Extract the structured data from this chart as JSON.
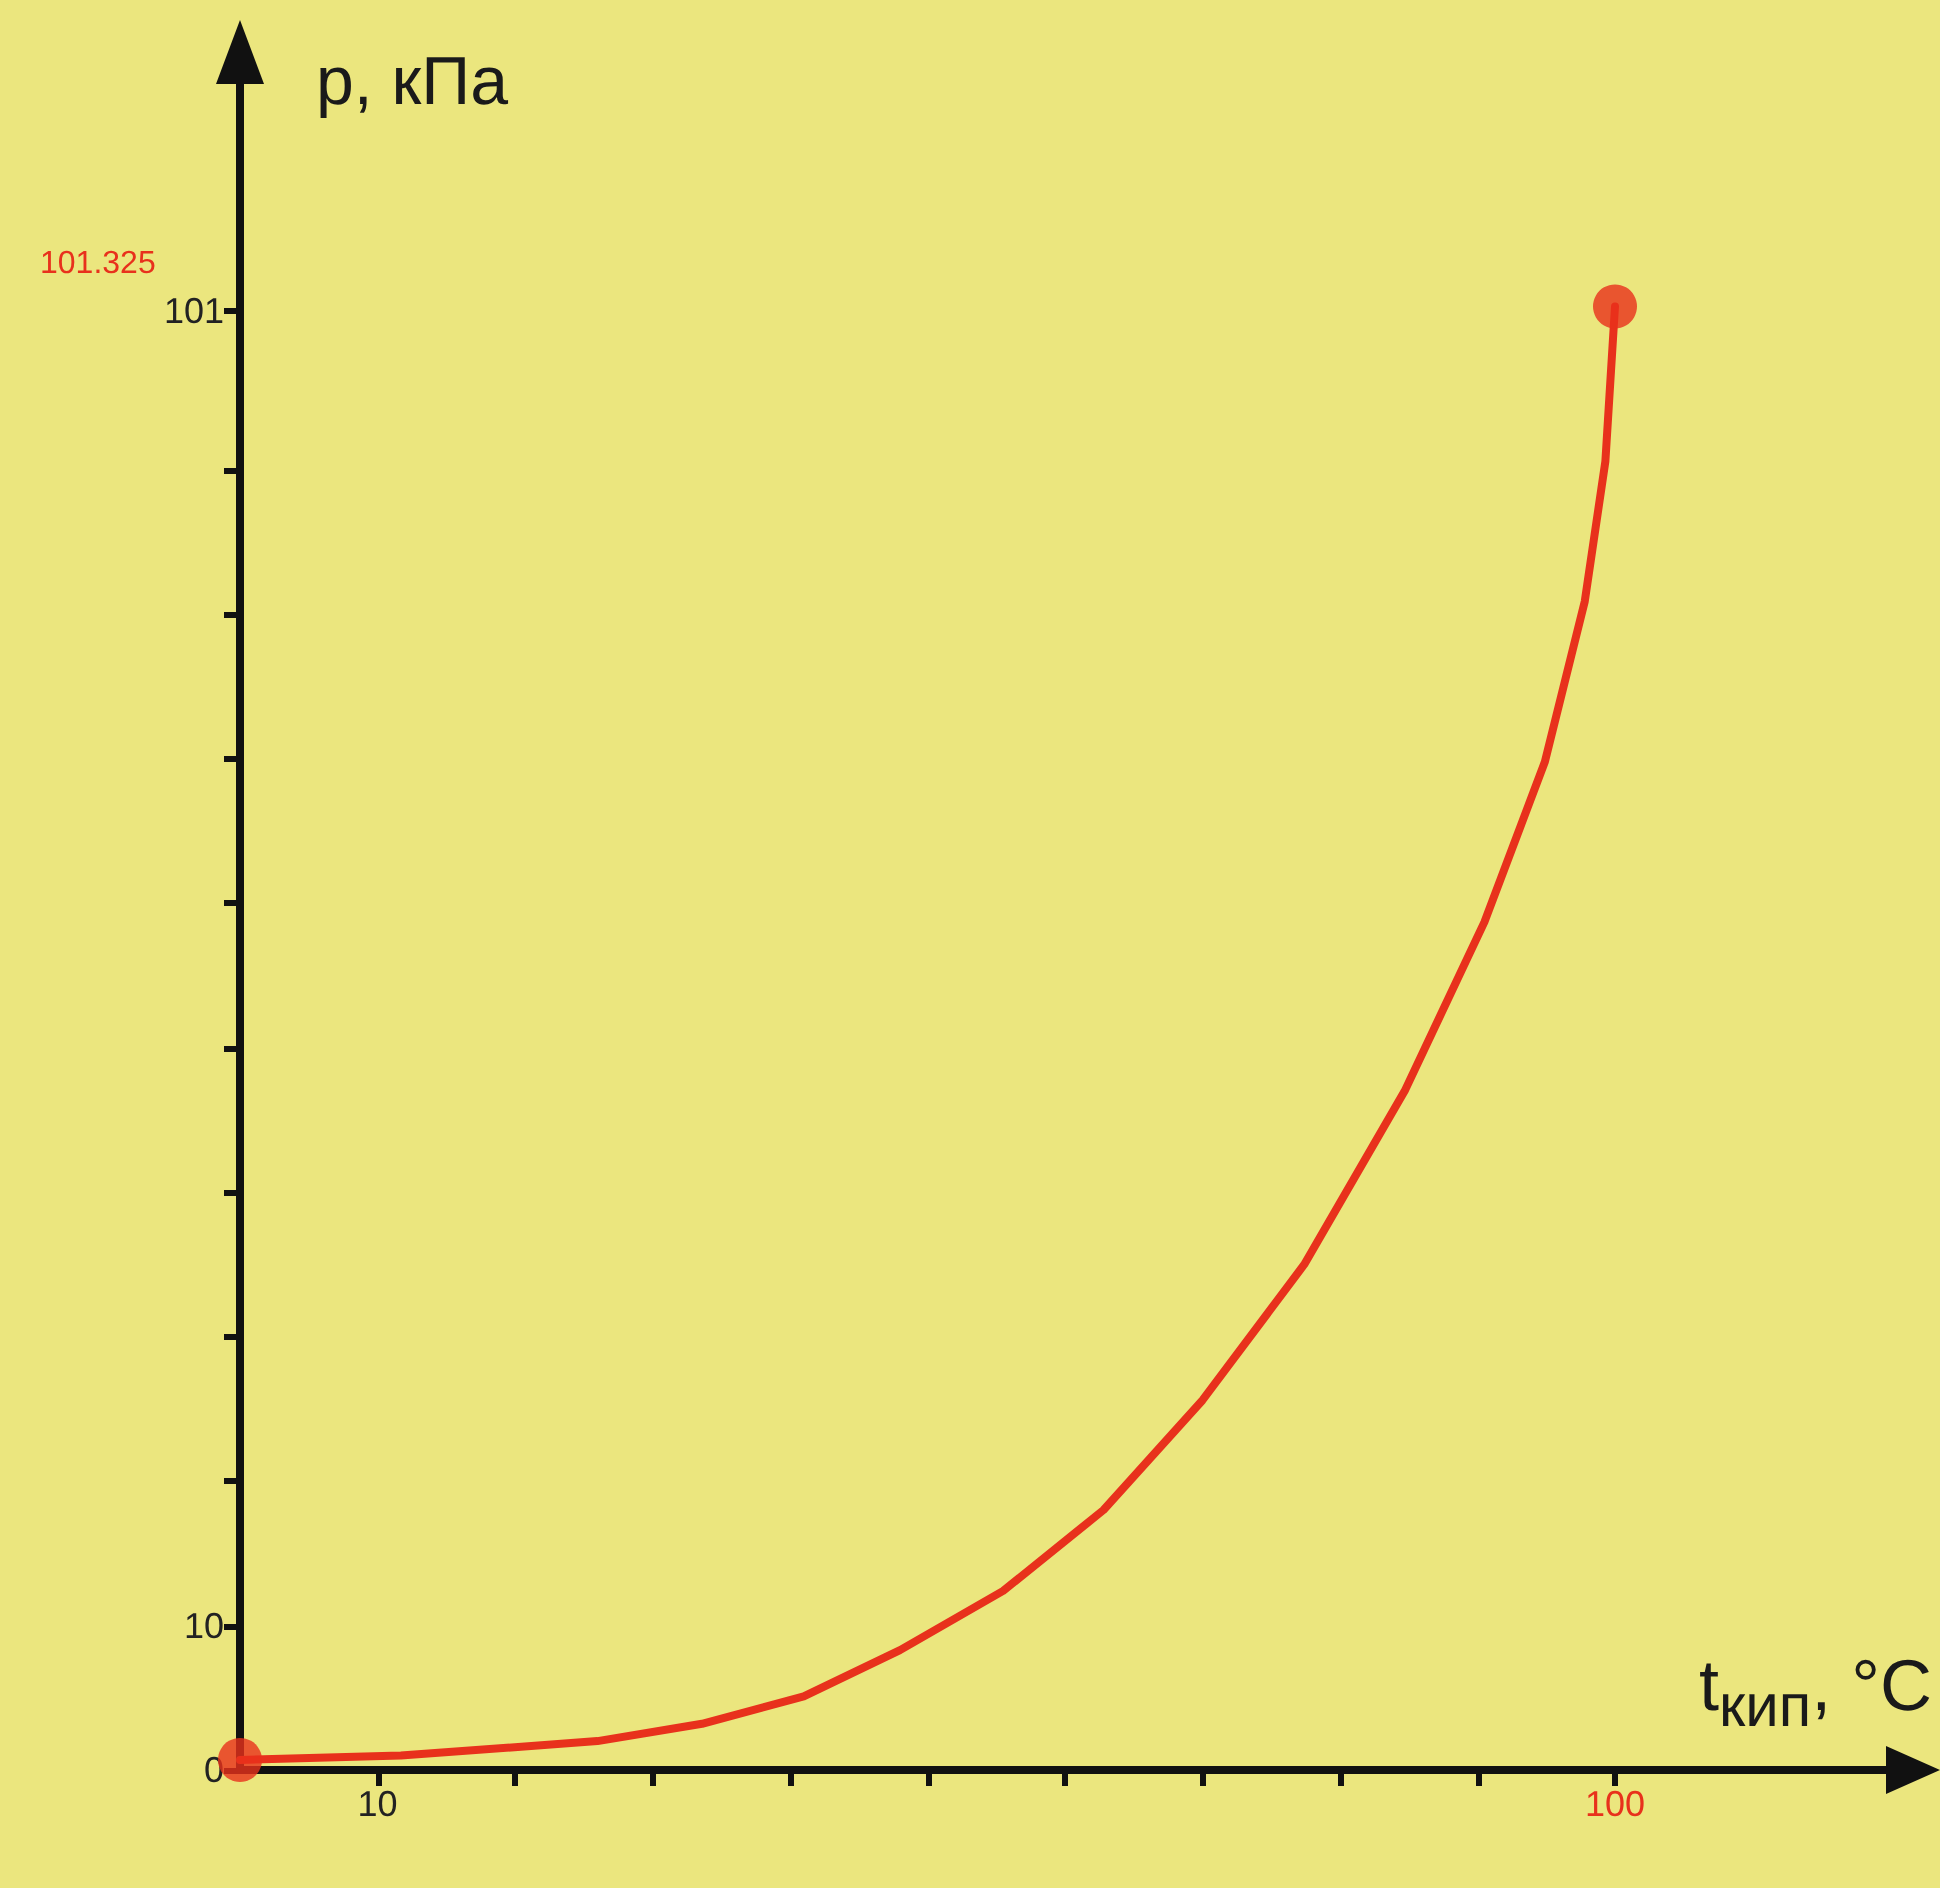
{
  "chart_data": {
    "type": "line",
    "xlabel": "t$_{кип}$, °C",
    "ylabel": "p, кПа",
    "x": [
      0,
      11.7,
      26,
      33.6,
      41,
      48,
      55.5,
      62.8,
      70,
      77.4,
      84.7,
      90.5,
      94.9,
      97.8,
      99.3,
      100
    ],
    "series": [
      {
        "color": "#e8311c",
        "values": [
          0.7,
          1,
          2,
          3.2,
          5.1,
          8.3,
          12.4,
          18,
          25.6,
          35,
          47,
          58.7,
          69.8,
          80.9,
          90.6,
          101.325
        ]
      },
      {
        "type": "scatter",
        "marker": "circle",
        "color": "#e8311c",
        "x": [
          0,
          100
        ],
        "values": [
          0.7,
          101.325
        ]
      }
    ],
    "xlim": [
      0,
      120
    ],
    "ylim": [
      0,
      117
    ],
    "xticks": [
      {
        "value": 10,
        "label": "10"
      },
      {
        "value": 20,
        "label": null
      },
      {
        "value": 30,
        "label": null
      },
      {
        "value": 40,
        "label": null
      },
      {
        "value": 50,
        "label": null
      },
      {
        "value": 60,
        "label": null
      },
      {
        "value": 70,
        "label": null
      },
      {
        "value": 80,
        "label": null
      },
      {
        "value": 90,
        "label": null
      },
      {
        "value": 100,
        "label": "100"
      }
    ],
    "yticks": [
      {
        "value": 0,
        "label": "0"
      },
      {
        "value": 10,
        "label": "10"
      },
      {
        "value": 20,
        "label": null
      },
      {
        "value": 30,
        "label": null
      },
      {
        "value": 40,
        "label": null
      },
      {
        "value": 50,
        "label": null
      },
      {
        "value": 60,
        "label": null
      },
      {
        "value": 70,
        "label": null
      },
      {
        "value": 80,
        "label": null
      },
      {
        "value": 90,
        "label": null
      },
      {
        "value": 101,
        "label": "101"
      }
    ],
    "annotations": [
      "101.325"
    ],
    "grid": false,
    "marker": "none",
    "line_style": "solid"
  }
}
